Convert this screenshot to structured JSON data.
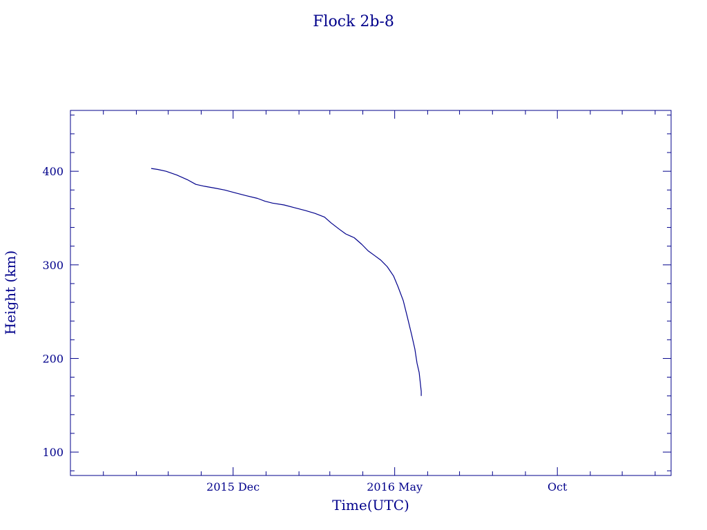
{
  "chart_data": {
    "type": "line",
    "title": "Flock 2b-8",
    "xlabel": "Time(UTC)",
    "ylabel": "Height (km)",
    "color": "#00008b",
    "xlim": [
      "2015-07-01",
      "2017-01-16"
    ],
    "ylim": [
      75,
      465
    ],
    "grid": false,
    "x_ticks": [
      {
        "label": "2015 Dec",
        "date": "2015-12-01"
      },
      {
        "label": "2016 May",
        "date": "2016-05-01"
      },
      {
        "label": "Oct",
        "date": "2016-10-01"
      }
    ],
    "y_ticks": [
      100,
      200,
      300,
      400
    ],
    "y_minor_step": 20,
    "series": [
      {
        "x": [
          "2015-09-15",
          "2015-09-21",
          "2015-09-29",
          "2015-10-09",
          "2015-10-19",
          "2015-10-27",
          "2015-11-04",
          "2015-11-14",
          "2015-11-23",
          "2015-12-03",
          "2015-12-13",
          "2015-12-24",
          "2015-12-31",
          "2016-01-07",
          "2016-01-18",
          "2016-01-28",
          "2016-02-07",
          "2016-02-16",
          "2016-02-25",
          "2016-03-02",
          "2016-03-10",
          "2016-03-16",
          "2016-03-24",
          "2016-03-31",
          "2016-04-06",
          "2016-04-12",
          "2016-04-18",
          "2016-04-24",
          "2016-04-30",
          "2016-05-04",
          "2016-05-09",
          "2016-05-13",
          "2016-05-17",
          "2016-05-20",
          "2016-05-22",
          "2016-05-24",
          "2016-05-25",
          "2016-05-26",
          "2016-05-26"
        ],
        "y": [
          403,
          402,
          400,
          396,
          391,
          386,
          384,
          382,
          380,
          377,
          374,
          371,
          368,
          366,
          364,
          361,
          358,
          355,
          351,
          345,
          338,
          333,
          329,
          322,
          315,
          310,
          305,
          298,
          288,
          277,
          262,
          244,
          225,
          210,
          195,
          185,
          175,
          165,
          160
        ]
      }
    ]
  }
}
